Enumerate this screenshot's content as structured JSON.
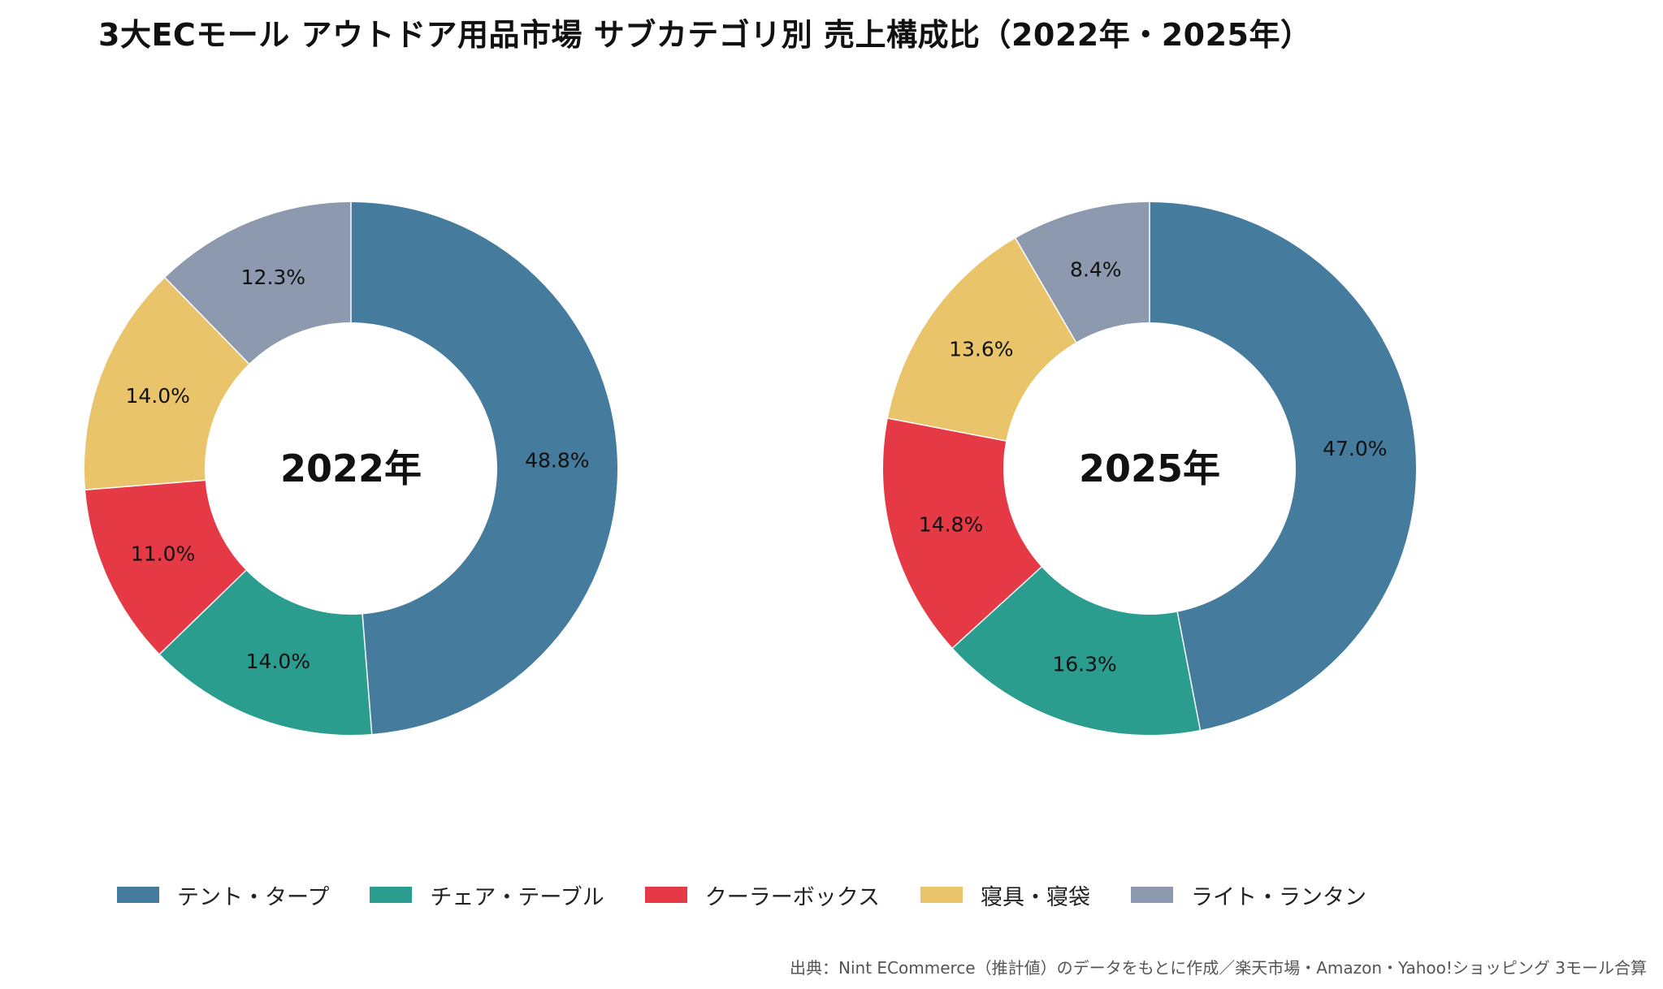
{
  "title": "3大ECモール アウトドア用品市場 サブカテゴリ別 売上構成比（2022年・2025年）",
  "source": "出典：Nint ECommerce（推計値）のデータをもとに作成／楽天市場・Amazon・Yahoo!ショッピング 3モール合算",
  "chart_data": {
    "type": "donut",
    "categories": [
      "テント・タープ",
      "チェア・テーブル",
      "クーラーボックス",
      "寝具・寝袋",
      "ライト・ランタン"
    ],
    "colors": [
      "#457b9d",
      "#2a9d8f",
      "#e63946",
      "#e9c46a",
      "#8d99ae"
    ],
    "unit": "%",
    "start_angle_deg": 0,
    "direction": "clockwise",
    "legend_position": "bottom",
    "charts": [
      {
        "center_label": "2022年",
        "values": [
          48.8,
          14.0,
          11.0,
          14.0,
          12.3
        ],
        "labels": [
          "48.8%",
          "14.0%",
          "11.0%",
          "14.0%",
          "12.3%"
        ]
      },
      {
        "center_label": "2025年",
        "values": [
          47.0,
          16.3,
          14.8,
          13.6,
          8.4
        ],
        "labels": [
          "47.0%",
          "16.3%",
          "14.8%",
          "13.6%",
          "8.4%"
        ]
      }
    ]
  }
}
